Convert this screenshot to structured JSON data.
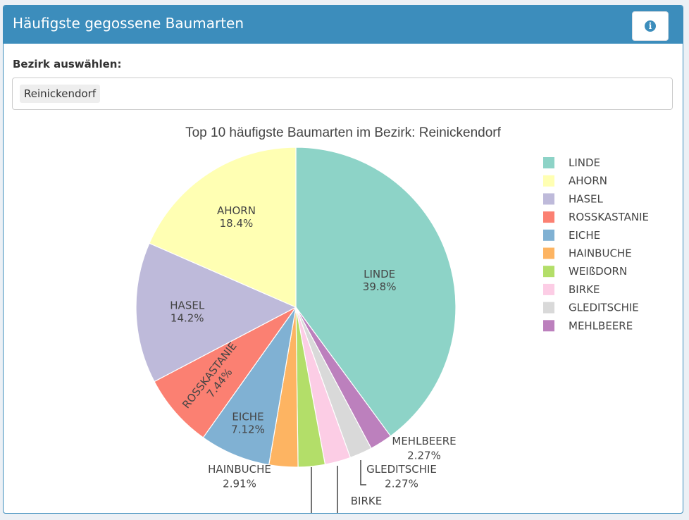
{
  "header": {
    "title": "Häufigste gegossene Baumarten",
    "info_icon": "info-circle-icon"
  },
  "filter": {
    "label": "Bezirk auswählen:",
    "selected": "Reinickendorf"
  },
  "colors": {
    "header_bg": "#3c8dbc"
  },
  "chart_data": {
    "type": "pie",
    "title": "Top 10 häufigste Baumarten im Bezirk: Reinickendorf",
    "legend_position": "right",
    "slices": [
      {
        "label": "LINDE",
        "value": 39.8,
        "text": "39.8%",
        "color": "#8dd3c7"
      },
      {
        "label": "MEHLBEERE",
        "value": 2.27,
        "text": "2.27%",
        "color": "#bc80bd"
      },
      {
        "label": "GLEDITSCHIE",
        "value": 2.27,
        "text": "2.27%",
        "color": "#d9d9d9"
      },
      {
        "label": "BIRKE",
        "value": 2.6,
        "text": "",
        "color": "#fccde5"
      },
      {
        "label": "WEIßDORN",
        "value": 2.7,
        "text": "",
        "color": "#b3de69"
      },
      {
        "label": "HAINBUCHE",
        "value": 2.91,
        "text": "2.91%",
        "color": "#fdb462"
      },
      {
        "label": "EICHE",
        "value": 7.12,
        "text": "7.12%",
        "color": "#80b1d3"
      },
      {
        "label": "ROSSKASTANIE",
        "value": 7.44,
        "text": "7.44%",
        "color": "#fb8072"
      },
      {
        "label": "HASEL",
        "value": 14.2,
        "text": "14.2%",
        "color": "#bebada"
      },
      {
        "label": "AHORN",
        "value": 18.4,
        "text": "18.4%",
        "color": "#ffffb3"
      }
    ],
    "legend": [
      "LINDE",
      "AHORN",
      "HASEL",
      "ROSSKASTANIE",
      "EICHE",
      "HAINBUCHE",
      "WEIßDORN",
      "BIRKE",
      "GLEDITSCHIE",
      "MEHLBEERE"
    ]
  }
}
